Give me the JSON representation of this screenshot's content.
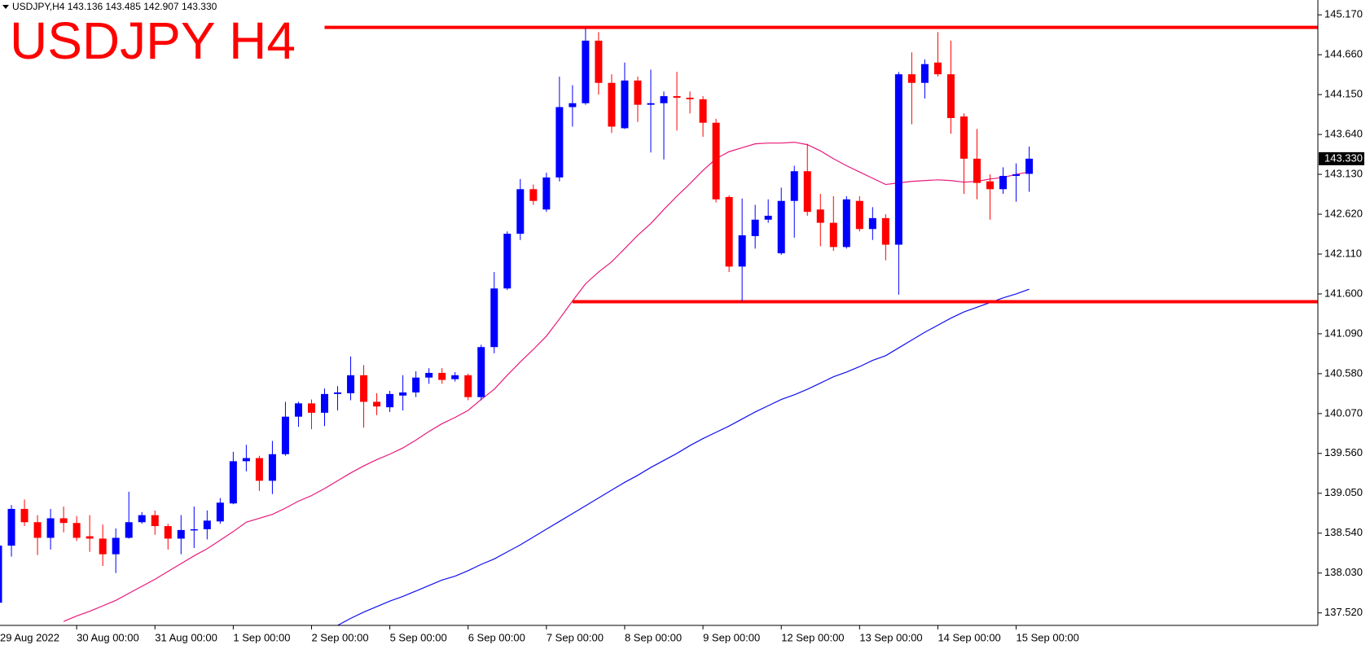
{
  "chart_data": {
    "type": "candlestick",
    "header": "USDJPY,H4  143.136 143.485 142.907 143.330",
    "title": "USDJPY H4",
    "categories": [
      "29 Aug 2022",
      null,
      null,
      null,
      null,
      null,
      "30 Aug 00:00",
      null,
      null,
      null,
      null,
      null,
      "31 Aug 00:00",
      null,
      null,
      null,
      null,
      null,
      "1 Sep 00:00",
      null,
      null,
      null,
      null,
      null,
      "2 Sep 00:00",
      null,
      null,
      null,
      null,
      null,
      "5 Sep 00:00",
      null,
      null,
      null,
      null,
      null,
      "6 Sep 00:00",
      null,
      null,
      null,
      null,
      null,
      "7 Sep 00:00",
      null,
      null,
      null,
      null,
      null,
      "8 Sep 00:00",
      null,
      null,
      null,
      null,
      null,
      "9 Sep 00:00",
      null,
      null,
      null,
      null,
      null,
      "12 Sep 00:00",
      null,
      null,
      null,
      null,
      null,
      "13 Sep 00:00",
      null,
      null,
      null,
      null,
      null,
      "14 Sep 00:00",
      null,
      null,
      null,
      null,
      null,
      "15 Sep 00:00",
      null
    ],
    "open": [
      137.65,
      138.38,
      138.85,
      138.68,
      138.48,
      138.73,
      138.67,
      138.5,
      138.47,
      138.27,
      138.48,
      138.68,
      138.77,
      138.63,
      138.47,
      138.58,
      138.59,
      138.69,
      138.92,
      139.46,
      139.5,
      139.21,
      139.55,
      140.03,
      140.2,
      140.08,
      140.32,
      140.33,
      140.56,
      140.22,
      140.15,
      140.3,
      140.34,
      140.53,
      140.59,
      140.51,
      140.56,
      140.28,
      140.92,
      141.67,
      142.37,
      142.94,
      142.68,
      143.09,
      143.99,
      144.04,
      144.84,
      144.3,
      143.72,
      144.33,
      144.02,
      144.04,
      144.13,
      144.11,
      144.09,
      143.79,
      142.84,
      141.95,
      142.34,
      142.55,
      142.12,
      142.79,
      143.17,
      142.68,
      142.51,
      142.2,
      142.79,
      142.43,
      142.57,
      142.23,
      144.41,
      144.3,
      144.56,
      144.41,
      143.87,
      143.33,
      143.04,
      142.94,
      143.11,
      143.136
    ],
    "high": [
      138.65,
      138.9,
      138.97,
      138.77,
      138.85,
      138.88,
      138.76,
      138.77,
      138.65,
      138.6,
      139.07,
      138.81,
      138.83,
      138.66,
      138.77,
      138.88,
      138.83,
      138.99,
      139.58,
      139.67,
      139.53,
      139.72,
      140.22,
      140.22,
      140.25,
      140.39,
      140.42,
      140.8,
      140.69,
      140.33,
      140.36,
      140.56,
      140.61,
      140.65,
      140.65,
      140.6,
      140.58,
      140.95,
      141.88,
      142.4,
      143.07,
      143.0,
      143.15,
      144.38,
      144.27,
      145.0,
      144.95,
      144.41,
      144.56,
      144.38,
      144.47,
      144.19,
      144.44,
      144.19,
      144.13,
      143.84,
      142.86,
      142.82,
      142.74,
      142.81,
      142.96,
      143.24,
      143.52,
      142.88,
      142.85,
      142.85,
      142.85,
      142.71,
      142.62,
      144.44,
      144.69,
      144.6,
      144.95,
      144.84,
      143.91,
      143.71,
      143.13,
      143.22,
      143.27,
      143.485
    ],
    "low": [
      137.62,
      138.24,
      138.63,
      138.26,
      138.33,
      138.55,
      138.44,
      138.3,
      138.12,
      138.03,
      138.47,
      138.66,
      138.52,
      138.33,
      138.27,
      138.35,
      138.46,
      138.66,
      138.91,
      139.33,
      139.08,
      139.04,
      139.53,
      139.9,
      139.87,
      139.91,
      140.11,
      140.24,
      139.89,
      140.05,
      140.09,
      140.11,
      140.28,
      140.45,
      140.45,
      140.48,
      140.24,
      140.24,
      140.84,
      141.65,
      142.29,
      142.74,
      142.65,
      143.04,
      143.74,
      144.02,
      144.15,
      143.66,
      143.71,
      143.8,
      143.41,
      143.32,
      143.69,
      143.91,
      143.61,
      142.77,
      141.88,
      141.51,
      142.18,
      142.51,
      142.1,
      142.32,
      142.6,
      142.21,
      142.15,
      142.18,
      142.4,
      142.29,
      142.03,
      141.59,
      143.77,
      144.1,
      144.38,
      143.65,
      142.88,
      142.81,
      142.55,
      142.88,
      142.78,
      142.907
    ],
    "close": [
      138.38,
      138.85,
      138.68,
      138.48,
      138.73,
      138.67,
      138.48,
      138.47,
      138.27,
      138.48,
      138.68,
      138.77,
      138.63,
      138.47,
      138.58,
      138.59,
      138.7,
      138.93,
      139.46,
      139.5,
      139.21,
      139.55,
      140.03,
      140.2,
      140.08,
      140.32,
      140.34,
      140.56,
      140.22,
      140.16,
      140.32,
      140.34,
      140.53,
      140.59,
      140.5,
      140.56,
      140.28,
      140.92,
      141.67,
      142.37,
      142.94,
      142.79,
      143.09,
      143.99,
      144.04,
      144.84,
      144.3,
      143.74,
      144.33,
      144.02,
      144.04,
      144.13,
      144.11,
      144.09,
      143.79,
      142.81,
      141.95,
      142.35,
      142.55,
      142.6,
      142.79,
      143.17,
      142.65,
      142.51,
      142.2,
      142.81,
      142.43,
      142.57,
      142.23,
      144.41,
      144.3,
      144.54,
      144.41,
      143.85,
      143.33,
      143.02,
      142.94,
      143.11,
      143.13,
      143.33
    ],
    "up_color": "#0000ff",
    "down_color": "#ff0000",
    "series": [
      {
        "color": "#e8197a",
        "values": [
          null,
          null,
          null,
          null,
          null,
          137.41,
          137.48,
          137.54,
          137.61,
          137.68,
          137.77,
          137.86,
          137.95,
          138.05,
          138.15,
          138.25,
          138.34,
          138.45,
          138.56,
          138.68,
          138.73,
          138.78,
          138.86,
          138.95,
          139.02,
          139.11,
          139.21,
          139.31,
          139.4,
          139.48,
          139.55,
          139.63,
          139.73,
          139.84,
          139.94,
          140.02,
          140.11,
          140.25,
          140.38,
          140.56,
          140.73,
          140.89,
          141.06,
          141.28,
          141.51,
          141.73,
          141.88,
          142.01,
          142.18,
          142.35,
          142.5,
          142.68,
          142.85,
          143.01,
          143.18,
          143.33,
          143.42,
          143.47,
          143.52,
          143.53,
          143.53,
          143.54,
          143.51,
          143.43,
          143.33,
          143.24,
          143.16,
          143.08,
          143.0,
          143.02,
          143.04,
          143.05,
          143.06,
          143.05,
          143.03,
          143.04,
          143.07,
          143.09,
          143.13,
          143.16
        ]
      },
      {
        "color": "#1010f0",
        "values": [
          null,
          null,
          null,
          null,
          null,
          null,
          null,
          null,
          null,
          null,
          null,
          null,
          null,
          null,
          null,
          null,
          null,
          null,
          null,
          null,
          null,
          null,
          null,
          null,
          null,
          null,
          137.36,
          137.45,
          137.53,
          137.6,
          137.67,
          137.73,
          137.8,
          137.87,
          137.94,
          137.99,
          138.06,
          138.14,
          138.21,
          138.3,
          138.39,
          138.49,
          138.59,
          138.69,
          138.79,
          138.89,
          138.99,
          139.09,
          139.19,
          139.28,
          139.38,
          139.47,
          139.56,
          139.66,
          139.75,
          139.83,
          139.91,
          140.0,
          140.09,
          140.17,
          140.25,
          140.31,
          140.38,
          140.46,
          140.54,
          140.6,
          140.67,
          140.75,
          140.81,
          140.91,
          141.01,
          141.11,
          141.2,
          141.29,
          141.37,
          141.43,
          141.49,
          141.55,
          141.6,
          141.66
        ]
      }
    ],
    "hlines": [
      {
        "value": 145.01,
        "start": 25,
        "color": "#ff0000"
      },
      {
        "value": 141.5,
        "start": 44,
        "color": "#ff0000"
      }
    ],
    "last_price": {
      "value": 143.33,
      "label": "143.330"
    },
    "ylim": [
      137.36,
      145.36
    ],
    "yticks": [
      {
        "value": 145.17,
        "label": "145.170"
      },
      {
        "value": 144.66,
        "label": "144.660"
      },
      {
        "value": 144.15,
        "label": "144.150"
      },
      {
        "value": 143.64,
        "label": "143.640"
      },
      {
        "value": 143.13,
        "label": "143.130"
      },
      {
        "value": 142.62,
        "label": "142.620"
      },
      {
        "value": 142.11,
        "label": "142.110"
      },
      {
        "value": 141.6,
        "label": "141.600"
      },
      {
        "value": 141.09,
        "label": "141.090"
      },
      {
        "value": 140.58,
        "label": "140.580"
      },
      {
        "value": 140.07,
        "label": "140.070"
      },
      {
        "value": 139.56,
        "label": "139.560"
      },
      {
        "value": 139.05,
        "label": "139.050"
      },
      {
        "value": 138.54,
        "label": "138.540"
      },
      {
        "value": 138.03,
        "label": "138.030"
      },
      {
        "value": 137.52,
        "label": "137.520"
      }
    ]
  }
}
